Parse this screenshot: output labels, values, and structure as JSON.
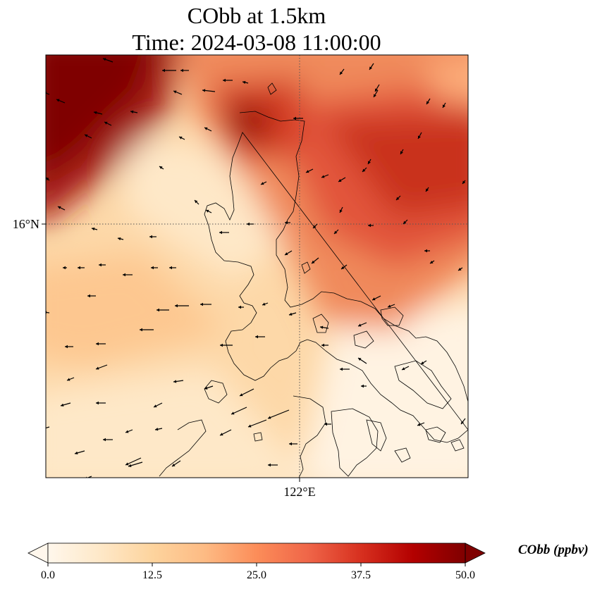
{
  "title_line1": "CObb at 1.5km",
  "title_line2": "Time: 2024-03-08 11:00:00",
  "map": {
    "lat_label": "16°N",
    "lon_label": "122°E",
    "field_name": "CObb",
    "field_units": "ppbv",
    "gridlines": "dotted",
    "wind_vectors": true,
    "coastlines": true
  },
  "colorbar": {
    "label": "CObb (ppbv)",
    "colormap": "OrRd",
    "min": 0.0,
    "max": 50.0,
    "extend": "both",
    "tick_labels": [
      "0.0",
      "12.5",
      "25.0",
      "37.5",
      "50.0"
    ],
    "colors": [
      "#fff7ec",
      "#fee8c8",
      "#fdd49e",
      "#fdbb84",
      "#fc8d59",
      "#ef6548",
      "#d7301f",
      "#b30000",
      "#7f0000"
    ]
  }
}
